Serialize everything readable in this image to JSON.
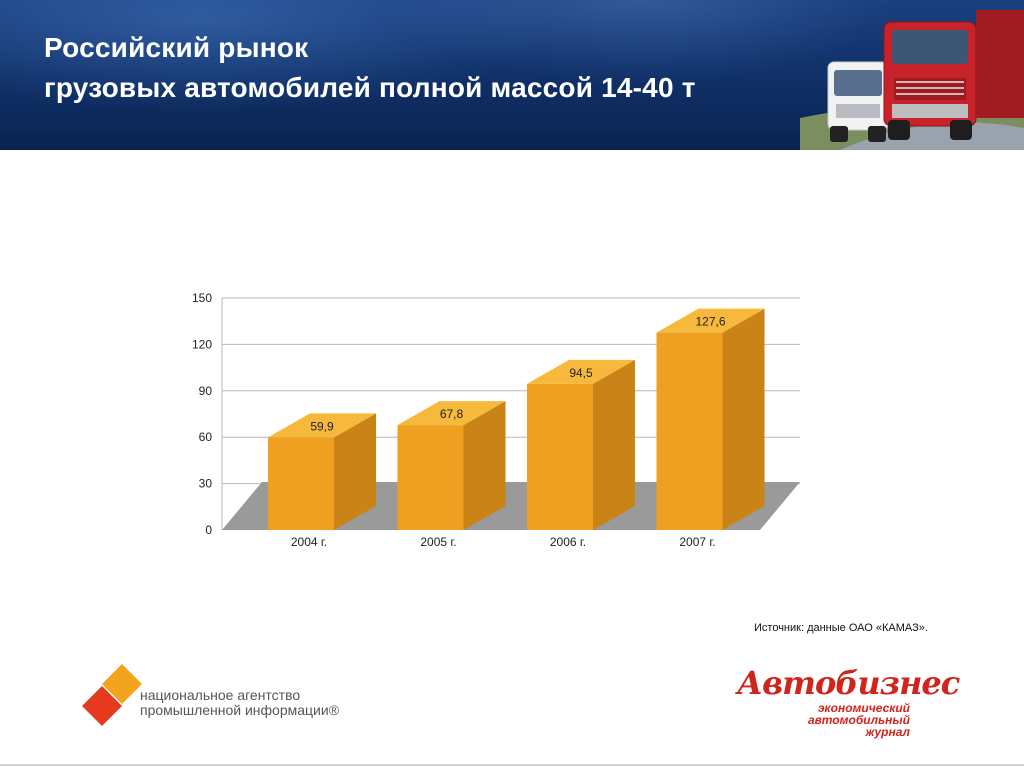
{
  "header": {
    "title_line1": "Российский рынок",
    "title_line2": "грузовых автомобилей полной массой 14-40 т"
  },
  "chart_data": {
    "type": "bar",
    "categories": [
      "2004 г.",
      "2005 г.",
      "2006 г.",
      "2007 г."
    ],
    "values": [
      59.9,
      67.8,
      94.5,
      127.6
    ],
    "value_labels": [
      "59,9",
      "67,8",
      "94,5",
      "127,6"
    ],
    "yticks": [
      "0",
      "30",
      "60",
      "90",
      "120",
      "150"
    ],
    "ylim": [
      0,
      150
    ],
    "title": "",
    "xlabel": "",
    "ylabel": "",
    "grid": true,
    "bar_color": "#f0a020",
    "floor_color": "#9a9a9a"
  },
  "source": "Источник: данные ОАО «КАМАЗ».",
  "logos": {
    "nai": {
      "line1": "национальное агентство",
      "line2": "промышленной информации®"
    },
    "avtobiznes": {
      "name": "Автобизнес",
      "sub1": "экономический",
      "sub2": "автомобильный",
      "sub3": "журнал"
    }
  },
  "colors": {
    "header_bg": "#0f2f66",
    "accent_red": "#d0251c",
    "accent_orange": "#f0a020"
  }
}
